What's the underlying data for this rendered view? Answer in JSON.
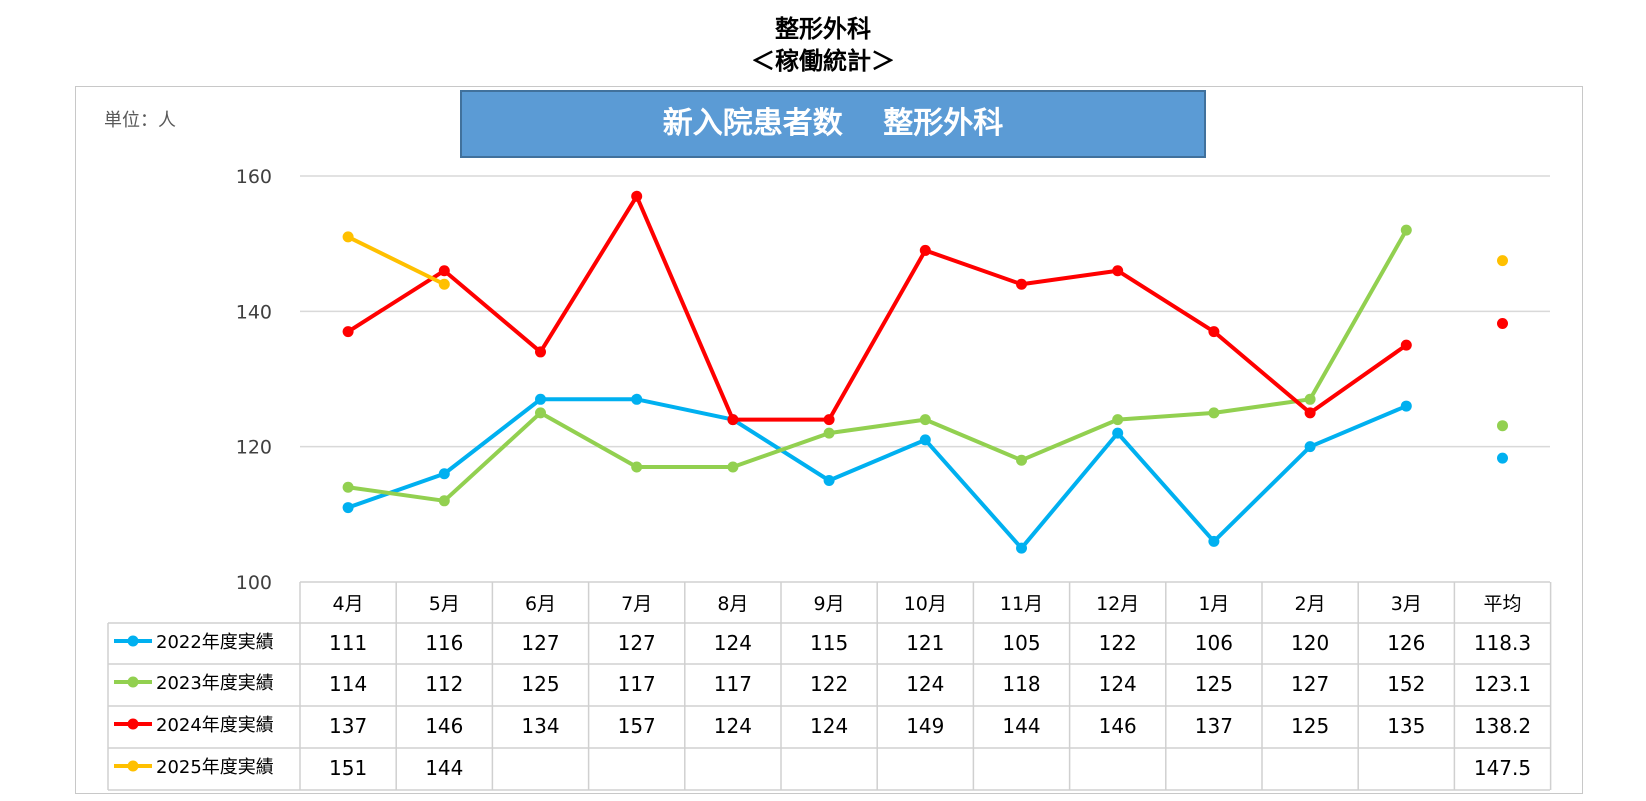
{
  "page": {
    "title_line1": "整形外科",
    "title_line2": "＜稼働統計＞"
  },
  "unit_label": "単位：人",
  "chart_data": {
    "type": "line",
    "title": "新入院患者数　 整形外科",
    "categories": [
      "4月",
      "5月",
      "6月",
      "7月",
      "8月",
      "9月",
      "10月",
      "11月",
      "12月",
      "1月",
      "2月",
      "3月"
    ],
    "average_label": "平均",
    "ylim": [
      100,
      160
    ],
    "yticks": [
      100,
      120,
      140,
      160
    ],
    "grid": true,
    "legend_placement": "data-table-left",
    "series": [
      {
        "name": "2022年度実績",
        "color": "#00b0f0",
        "values": [
          111,
          116,
          127,
          127,
          124,
          115,
          121,
          105,
          122,
          106,
          120,
          126
        ],
        "average": 118.3,
        "average_label": "118.3"
      },
      {
        "name": "2023年度実績",
        "color": "#92d050",
        "values": [
          114,
          112,
          125,
          117,
          117,
          122,
          124,
          118,
          124,
          125,
          127,
          152
        ],
        "average": 123.1,
        "average_label": "123.1"
      },
      {
        "name": "2024年度実績",
        "color": "#ff0000",
        "values": [
          137,
          146,
          134,
          157,
          124,
          124,
          149,
          144,
          146,
          137,
          125,
          135
        ],
        "average": 138.2,
        "average_label": "138.2"
      },
      {
        "name": "2025年度実績",
        "color": "#ffc000",
        "values": [
          151,
          144,
          null,
          null,
          null,
          null,
          null,
          null,
          null,
          null,
          null,
          null
        ],
        "average": 147.5,
        "average_label": "147.5"
      }
    ]
  }
}
